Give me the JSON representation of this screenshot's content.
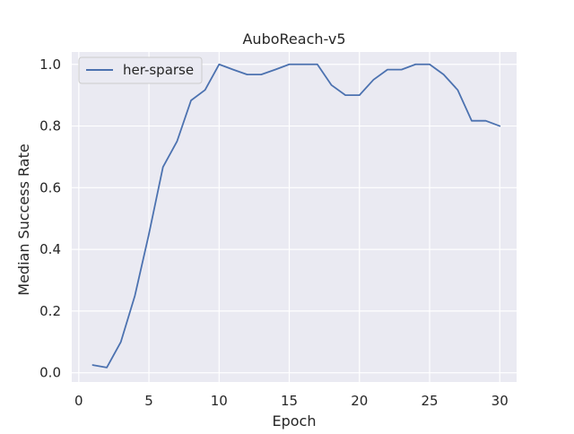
{
  "chart_data": {
    "type": "line",
    "title": "AuboReach-v5",
    "xlabel": "Epoch",
    "ylabel": "Median Success Rate",
    "xlim": [
      -0.5,
      31.2
    ],
    "ylim": [
      -0.03,
      1.04
    ],
    "xticks": [
      0,
      5,
      10,
      15,
      20,
      25,
      30
    ],
    "yticks": [
      0.0,
      0.2,
      0.4,
      0.6,
      0.8,
      1.0
    ],
    "xtick_labels": [
      "0",
      "5",
      "10",
      "15",
      "20",
      "25",
      "30"
    ],
    "ytick_labels": [
      "0.0",
      "0.2",
      "0.4",
      "0.6",
      "0.8",
      "1.0"
    ],
    "grid": true,
    "legend_position": "top-left",
    "colors": {
      "background": "#eaeaf2",
      "grid": "#ffffff",
      "series": "#4c72b0"
    },
    "series": [
      {
        "name": "her-sparse",
        "x": [
          1,
          2,
          3,
          4,
          5,
          6,
          7,
          8,
          9,
          10,
          11,
          12,
          13,
          14,
          15,
          16,
          17,
          18,
          19,
          20,
          21,
          22,
          23,
          24,
          25,
          26,
          27,
          28,
          29,
          30
        ],
        "values": [
          0.025,
          0.017,
          0.1,
          0.25,
          0.45,
          0.667,
          0.75,
          0.883,
          0.917,
          1.0,
          0.983,
          0.967,
          0.967,
          0.983,
          1.0,
          1.0,
          1.0,
          0.933,
          0.9,
          0.9,
          0.95,
          0.983,
          0.983,
          1.0,
          1.0,
          0.967,
          0.917,
          0.817,
          0.817,
          0.8
        ]
      }
    ]
  }
}
